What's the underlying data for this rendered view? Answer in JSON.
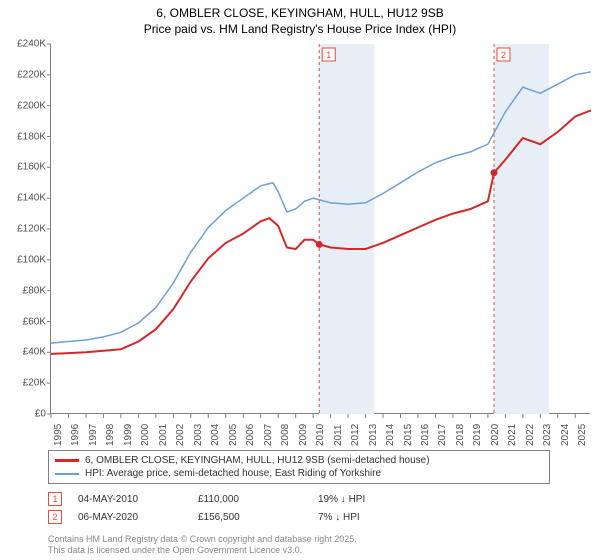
{
  "title": {
    "line1": "6, OMBLER CLOSE, KEYINGHAM, HULL, HU12 9SB",
    "line2": "Price paid vs. HM Land Registry's House Price Index (HPI)"
  },
  "chart": {
    "type": "line",
    "background_color": "#ffffff",
    "grid_color": "#d0d0d0",
    "axis_color": "#808080",
    "xlim": [
      1995,
      2025.9
    ],
    "ylim": [
      0,
      240000
    ],
    "ytick_step": 20000,
    "y_ticks": [
      "£0",
      "£20K",
      "£40K",
      "£60K",
      "£80K",
      "£100K",
      "£120K",
      "£140K",
      "£160K",
      "£180K",
      "£200K",
      "£220K",
      "£240K"
    ],
    "x_ticks": [
      "1995",
      "1996",
      "1997",
      "1998",
      "1999",
      "2000",
      "2001",
      "2002",
      "2003",
      "2004",
      "2005",
      "2006",
      "2007",
      "2008",
      "2009",
      "2010",
      "2011",
      "2012",
      "2013",
      "2014",
      "2015",
      "2016",
      "2017",
      "2018",
      "2019",
      "2020",
      "2021",
      "2022",
      "2023",
      "2024",
      "2025"
    ],
    "shaded_regions": [
      {
        "x_start": 2010.35,
        "x_end": 2013.5,
        "color": "#e8eef5"
      },
      {
        "x_start": 2020.35,
        "x_end": 2023.5,
        "color": "#e8eef5"
      }
    ],
    "vertical_markers": [
      {
        "label": "1",
        "x": 2010.35,
        "color": "#e74c3c"
      },
      {
        "label": "2",
        "x": 2020.35,
        "color": "#e74c3c"
      }
    ],
    "series": [
      {
        "name": "hpi",
        "color": "#6f9fd8",
        "line_width": 1.5,
        "points_x": [
          1995,
          1996,
          1997,
          1998,
          1999,
          2000,
          2001,
          2002,
          2003,
          2004,
          2005,
          2006,
          2007,
          2007.7,
          2008,
          2008.5,
          2009,
          2009.5,
          2010,
          2011,
          2012,
          2013,
          2014,
          2015,
          2016,
          2017,
          2018,
          2019,
          2020,
          2021,
          2022,
          2023,
          2024,
          2025,
          2025.9
        ],
        "points_y": [
          46000,
          47000,
          48000,
          50000,
          53000,
          59000,
          69000,
          85000,
          105000,
          121000,
          132000,
          140000,
          148000,
          150000,
          144000,
          131000,
          133000,
          138000,
          140000,
          137000,
          136000,
          137000,
          143000,
          150000,
          157000,
          163000,
          167000,
          170000,
          175000,
          196000,
          212000,
          208000,
          214000,
          220000,
          222000
        ]
      },
      {
        "name": "price_paid",
        "color": "#d62728",
        "line_width": 2,
        "points_x": [
          1995,
          1996,
          1997,
          1998,
          1999,
          2000,
          2001,
          2002,
          2003,
          2004,
          2005,
          2006,
          2007,
          2007.5,
          2008,
          2008.5,
          2009,
          2009.5,
          2010,
          2010.35,
          2011,
          2012,
          2013,
          2014,
          2015,
          2016,
          2017,
          2018,
          2019,
          2020,
          2020.35,
          2021,
          2022,
          2023,
          2024,
          2025,
          2025.9
        ],
        "points_y": [
          39000,
          39500,
          40000,
          41000,
          42000,
          47000,
          55000,
          68000,
          86000,
          101000,
          111000,
          117000,
          125000,
          127000,
          122000,
          108000,
          107000,
          113000,
          113000,
          110000,
          108000,
          107000,
          107000,
          111000,
          116000,
          121000,
          126000,
          130000,
          133000,
          138000,
          156500,
          165000,
          179000,
          175000,
          183000,
          193000,
          197000
        ]
      }
    ],
    "sale_points": [
      {
        "x": 2010.35,
        "y": 110000,
        "color": "#d62728"
      },
      {
        "x": 2020.35,
        "y": 156500,
        "color": "#d62728"
      }
    ]
  },
  "legend": {
    "item1": {
      "color": "#d62728",
      "label": "6, OMBLER CLOSE, KEYINGHAM, HULL, HU12 9SB (semi-detached house)"
    },
    "item2": {
      "color": "#6f9fd8",
      "label": "HPI: Average price, semi-detached house, East Riding of Yorkshire"
    }
  },
  "data_rows": [
    {
      "marker": "1",
      "date": "04-MAY-2010",
      "price": "£110,000",
      "delta": "19% ↓ HPI"
    },
    {
      "marker": "2",
      "date": "06-MAY-2020",
      "price": "£156,500",
      "delta": "7% ↓ HPI"
    }
  ],
  "footer": {
    "line1": "Contains HM Land Registry data © Crown copyright and database right 2025.",
    "line2": "This data is licensed under the Open Government Licence v3.0."
  }
}
